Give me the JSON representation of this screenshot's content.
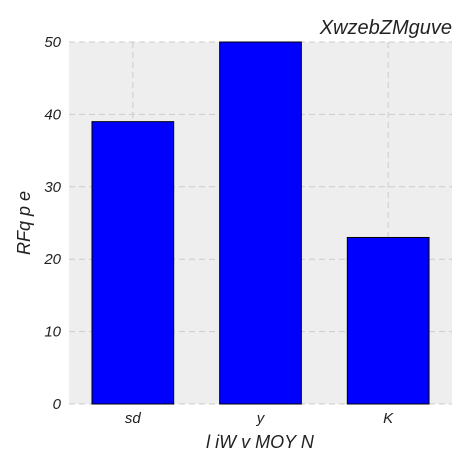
{
  "chart_data": {
    "type": "bar",
    "title": "XwzebZMguve",
    "xlabel": "l iW v MOY N",
    "ylabel": "RFq p e",
    "categories": [
      "sd",
      "y",
      "K"
    ],
    "values": [
      39,
      50,
      23
    ],
    "ylim": [
      0,
      50
    ],
    "yticks": [
      0,
      10,
      20,
      30,
      40,
      50
    ],
    "grid": true,
    "colors": {
      "bar": "#0000ff",
      "plot_background": "#eeeeee"
    }
  }
}
